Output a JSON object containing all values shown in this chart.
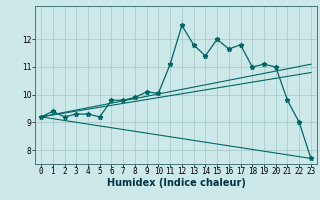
{
  "title": "",
  "xlabel": "Humidex (Indice chaleur)",
  "ylabel": "",
  "bg_color": "#cce8e8",
  "grid_color": "#aacccc",
  "line_color": "#006666",
  "xlim": [
    -0.5,
    23.5
  ],
  "ylim": [
    7.5,
    13.2
  ],
  "xticks": [
    0,
    1,
    2,
    3,
    4,
    5,
    6,
    7,
    8,
    9,
    10,
    11,
    12,
    13,
    14,
    15,
    16,
    17,
    18,
    19,
    20,
    21,
    22,
    23
  ],
  "yticks": [
    8,
    9,
    10,
    11,
    12
  ],
  "main_x": [
    0,
    1,
    2,
    3,
    4,
    5,
    6,
    7,
    8,
    9,
    10,
    11,
    12,
    13,
    14,
    15,
    16,
    17,
    18,
    19,
    20,
    21,
    22,
    23
  ],
  "main_y": [
    9.2,
    9.4,
    9.2,
    9.3,
    9.3,
    9.2,
    9.8,
    9.8,
    9.9,
    10.1,
    10.05,
    11.1,
    12.5,
    11.8,
    11.4,
    12.0,
    11.65,
    11.8,
    11.0,
    11.1,
    11.0,
    9.8,
    9.0,
    7.7
  ],
  "line1_x": [
    0,
    23
  ],
  "line1_y": [
    9.2,
    11.1
  ],
  "line2_x": [
    0,
    23
  ],
  "line2_y": [
    9.2,
    10.8
  ],
  "line3_x": [
    0,
    23
  ],
  "line3_y": [
    9.2,
    7.7
  ]
}
